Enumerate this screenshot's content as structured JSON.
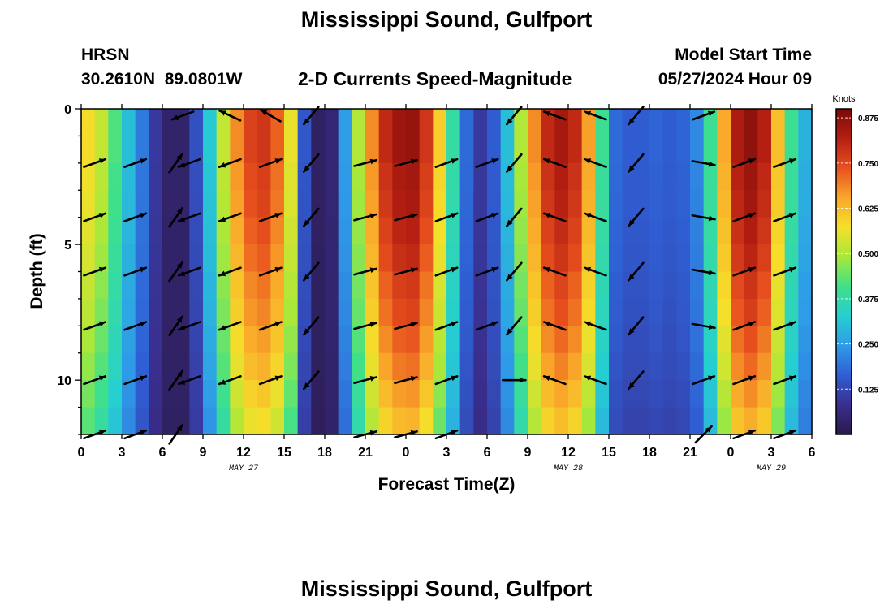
{
  "title": "Mississippi Sound, Gulfport",
  "footer_title": "Mississippi Sound, Gulfport",
  "station": {
    "id": "HRSN",
    "coords": "30.2610N  89.0801W"
  },
  "subtitle": "2-D Currents Speed-Magnitude",
  "model_start": {
    "label": "Model Start Time",
    "value": "05/27/2024 Hour 09"
  },
  "chart_data": {
    "type": "heatmap",
    "title": "2-D Currents Speed-Magnitude",
    "xlabel": "Forecast Time(Z)",
    "ylabel": "Depth (ft)",
    "x_ticks": [
      "0",
      "3",
      "6",
      "9",
      "12",
      "15",
      "18",
      "21",
      "0",
      "3",
      "6",
      "9",
      "12",
      "15",
      "18",
      "21",
      "0",
      "3",
      "6"
    ],
    "x_range_hours": [
      0,
      54
    ],
    "y_ticks": [
      0,
      5,
      10
    ],
    "ylim": [
      0,
      12
    ],
    "date_labels": [
      {
        "hour": 12,
        "label": "MAY 27"
      },
      {
        "hour": 36,
        "label": "MAY 28"
      },
      {
        "hour": 51,
        "label": "MAY 29"
      }
    ],
    "colorbar": {
      "unit": "Knots",
      "min": 0.0,
      "max": 0.9,
      "ticks": [
        "0.125",
        "0.250",
        "0.375",
        "0.500",
        "0.625",
        "0.750",
        "0.875"
      ],
      "colors": [
        "#2a1a4a",
        "#3a2e8e",
        "#2f5fd4",
        "#2f9be8",
        "#26cfd0",
        "#3fe08a",
        "#a8e83a",
        "#f5e02a",
        "#f9a72a",
        "#e8501e",
        "#b51f12",
        "#7a0a08"
      ]
    },
    "speed_profile": {
      "hours": [
        0,
        1,
        2,
        3,
        4,
        5,
        6,
        7,
        8,
        9,
        10,
        11,
        12,
        13,
        14,
        15,
        16,
        17,
        18,
        19,
        20,
        21,
        22,
        23,
        24,
        25,
        26,
        27,
        28,
        29,
        30,
        31,
        32,
        33,
        34,
        35,
        36,
        37,
        38,
        39,
        40,
        41,
        42,
        43,
        44,
        45,
        46,
        47,
        48,
        49,
        50,
        51,
        52,
        53,
        54
      ],
      "speed_knots": [
        0.58,
        0.52,
        0.42,
        0.3,
        0.2,
        0.1,
        0.04,
        0.04,
        0.14,
        0.32,
        0.52,
        0.68,
        0.76,
        0.78,
        0.72,
        0.56,
        0.15,
        0.03,
        0.05,
        0.25,
        0.5,
        0.68,
        0.8,
        0.85,
        0.86,
        0.78,
        0.6,
        0.38,
        0.18,
        0.1,
        0.16,
        0.3,
        0.5,
        0.68,
        0.8,
        0.84,
        0.8,
        0.66,
        0.4,
        0.18,
        0.16,
        0.16,
        0.17,
        0.16,
        0.17,
        0.22,
        0.4,
        0.65,
        0.83,
        0.87,
        0.82,
        0.62,
        0.4,
        0.28,
        0.25
      ],
      "depth_factor": [
        1.0,
        1.0,
        0.98,
        0.97,
        0.95,
        0.93,
        0.9,
        0.88,
        0.85,
        0.82,
        0.78,
        0.74
      ]
    },
    "vector_rows_depth_ft": [
      2,
      4,
      6,
      8,
      10,
      12
    ],
    "vector_columns": [
      {
        "hour": 1,
        "angle": 20,
        "rows": [
          0,
          1,
          2,
          3,
          4,
          5
        ]
      },
      {
        "hour": 4,
        "angle": 20,
        "rows": [
          0,
          1,
          2,
          3,
          4,
          5
        ]
      },
      {
        "hour": 7,
        "angle": 55,
        "rows": [
          0,
          1,
          2,
          3,
          4,
          5
        ]
      },
      {
        "hour": 7.5,
        "angle": -160,
        "rows": [
          -1
        ]
      },
      {
        "hour": 8,
        "angle": -160,
        "rows": [
          0,
          1,
          2,
          3,
          4
        ]
      },
      {
        "hour": 11,
        "angle": 155,
        "rows": [
          -1
        ]
      },
      {
        "hour": 11,
        "angle": -160,
        "rows": [
          0,
          1,
          2,
          3,
          4
        ]
      },
      {
        "hour": 14,
        "angle": 150,
        "rows": [
          -1
        ]
      },
      {
        "hour": 14,
        "angle": 20,
        "rows": [
          0,
          1,
          2,
          3,
          4
        ]
      },
      {
        "hour": 17,
        "angle": 230,
        "rows": [
          -1,
          0,
          1,
          2,
          3,
          4
        ]
      },
      {
        "hour": 21,
        "angle": 15,
        "rows": [
          0,
          1,
          2,
          3,
          4,
          5
        ]
      },
      {
        "hour": 24,
        "angle": 15,
        "rows": [
          0,
          1,
          2,
          3,
          4,
          5
        ]
      },
      {
        "hour": 27,
        "angle": 20,
        "rows": [
          0,
          1,
          2,
          3,
          4,
          5
        ]
      },
      {
        "hour": 30,
        "angle": 20,
        "rows": [
          0,
          1,
          2,
          3
        ]
      },
      {
        "hour": 32,
        "angle": 230,
        "rows": [
          -1,
          0,
          1,
          2,
          3
        ]
      },
      {
        "hour": 32,
        "angle": 0,
        "rows": [
          4
        ]
      },
      {
        "hour": 35,
        "angle": 160,
        "rows": [
          -1,
          0,
          1,
          2,
          3,
          4
        ]
      },
      {
        "hour": 38,
        "angle": 160,
        "rows": [
          -1,
          0,
          1,
          2,
          3,
          4
        ]
      },
      {
        "hour": 41,
        "angle": 230,
        "rows": [
          -1,
          0,
          1,
          2,
          3,
          4
        ]
      },
      {
        "hour": 46,
        "angle": 20,
        "rows": [
          -1
        ]
      },
      {
        "hour": 46,
        "angle": -10,
        "rows": [
          0,
          1,
          2,
          3
        ]
      },
      {
        "hour": 46,
        "angle": 20,
        "rows": [
          4
        ]
      },
      {
        "hour": 46,
        "angle": 45,
        "rows": [
          5
        ]
      },
      {
        "hour": 49,
        "angle": 20,
        "rows": [
          0,
          1,
          2,
          3,
          4,
          5
        ]
      },
      {
        "hour": 52,
        "angle": 20,
        "rows": [
          0,
          1,
          2,
          3,
          4,
          5
        ]
      }
    ]
  }
}
